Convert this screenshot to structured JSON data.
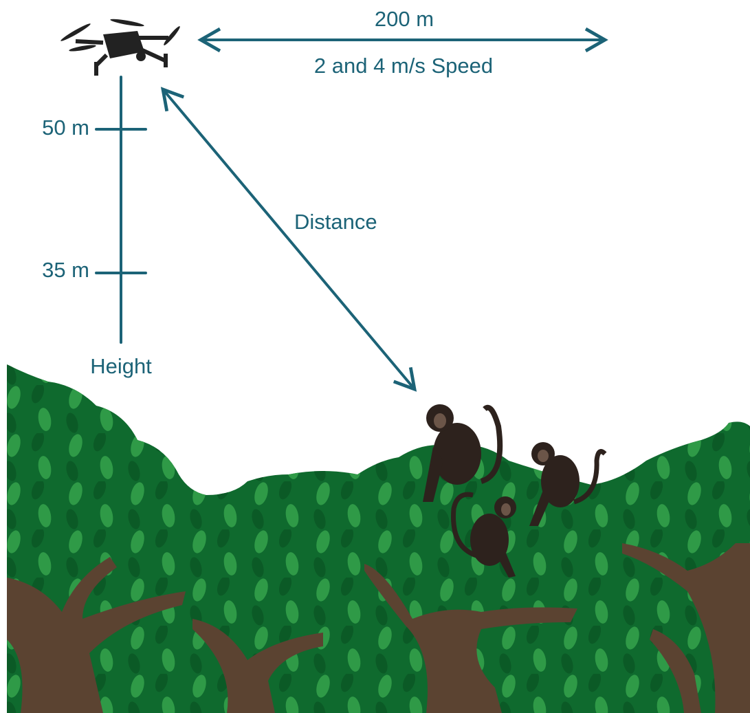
{
  "labels": {
    "horizontal_distance": "200 m",
    "speed": "2 and 4 m/s Speed",
    "height_high": "50 m",
    "height_low": "35 m",
    "distance": "Distance",
    "height": "Height"
  }
}
